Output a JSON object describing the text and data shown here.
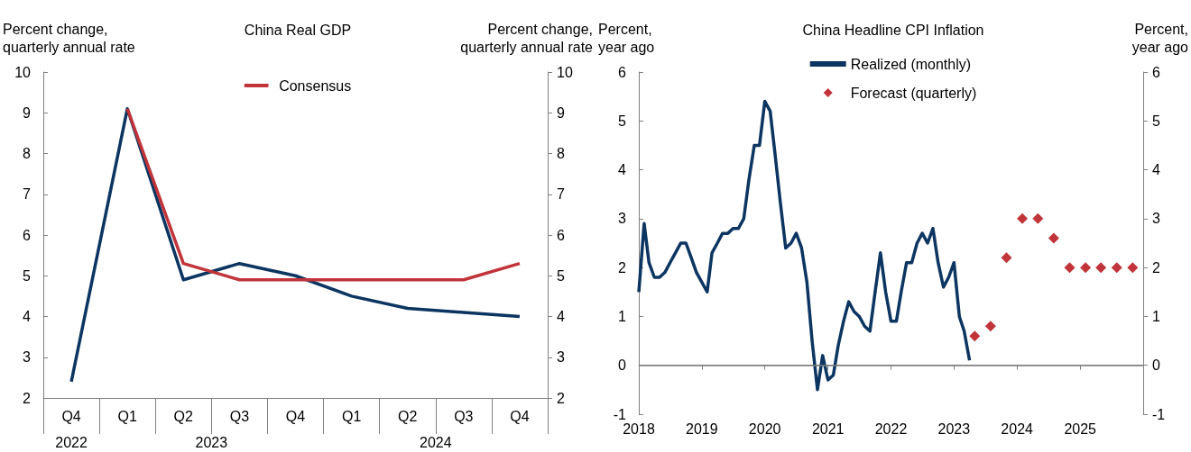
{
  "chart_data": [
    {
      "type": "line",
      "title": "China Real GDP",
      "ylabel": "Percent change, quarterly annual rate",
      "y2label": "Percent change, quarterly annual rate",
      "categories": [
        "Q4",
        "Q1",
        "Q2",
        "Q3",
        "Q4",
        "Q1",
        "Q2",
        "Q3",
        "Q4"
      ],
      "series": [
        {
          "color": "#0c3561",
          "values": [
            2.4,
            9.1,
            4.9,
            5.3,
            5.0,
            4.5,
            4.2,
            4.1,
            4.0
          ]
        },
        {
          "name": "Consensus",
          "color": "#c1343a",
          "values": [
            null,
            9.1,
            5.3,
            4.9,
            4.9,
            4.9,
            4.9,
            4.9,
            5.3
          ]
        }
      ],
      "ylim": [
        2,
        10
      ],
      "yticks": [
        2,
        3,
        4,
        5,
        6,
        7,
        8,
        9,
        10
      ],
      "y2lim": [
        2,
        10
      ],
      "y2ticks": [
        2,
        3,
        4,
        5,
        6,
        7,
        8,
        9,
        10
      ],
      "annotations": [
        "2022",
        "2023",
        "2024"
      ],
      "legend": "top",
      "grid": false,
      "marker": "none",
      "line_style": "solid"
    },
    {
      "type": "line",
      "title": "China Headline CPI Inflation",
      "ylabel": "Percent, year ago",
      "y2label": "Percent, year ago",
      "series": [
        {
          "name": "Realized (monthly)",
          "color": "#0c3561",
          "marker": "none",
          "x": [
            "2018-01",
            "2018-02",
            "2018-03",
            "2018-04",
            "2018-05",
            "2018-06",
            "2018-07",
            "2018-08",
            "2018-09",
            "2018-10",
            "2018-11",
            "2018-12",
            "2019-01",
            "2019-02",
            "2019-03",
            "2019-04",
            "2019-05",
            "2019-06",
            "2019-07",
            "2019-08",
            "2019-09",
            "2019-10",
            "2019-11",
            "2019-12",
            "2020-01",
            "2020-02",
            "2020-03",
            "2020-04",
            "2020-05",
            "2020-06",
            "2020-07",
            "2020-08",
            "2020-09",
            "2020-10",
            "2020-11",
            "2020-12",
            "2021-01",
            "2021-02",
            "2021-03",
            "2021-04",
            "2021-05",
            "2021-06",
            "2021-07",
            "2021-08",
            "2021-09",
            "2021-10",
            "2021-11",
            "2021-12",
            "2022-01",
            "2022-02",
            "2022-03",
            "2022-04",
            "2022-05",
            "2022-06",
            "2022-07",
            "2022-08",
            "2022-09",
            "2022-10",
            "2022-11",
            "2022-12",
            "2023-01",
            "2023-02",
            "2023-03",
            "2023-04"
          ],
          "values": [
            1.5,
            2.9,
            2.1,
            1.8,
            1.8,
            1.9,
            2.1,
            2.3,
            2.5,
            2.5,
            2.2,
            1.9,
            1.7,
            1.5,
            2.3,
            2.5,
            2.7,
            2.7,
            2.8,
            2.8,
            3.0,
            3.8,
            4.5,
            4.5,
            5.4,
            5.2,
            4.3,
            3.3,
            2.4,
            2.5,
            2.7,
            2.4,
            1.7,
            0.5,
            -0.5,
            0.2,
            -0.3,
            -0.2,
            0.4,
            0.9,
            1.3,
            1.1,
            1.0,
            0.8,
            0.7,
            1.5,
            2.3,
            1.5,
            0.9,
            0.9,
            1.5,
            2.1,
            2.1,
            2.5,
            2.7,
            2.5,
            2.8,
            2.1,
            1.6,
            1.8,
            2.1,
            1.0,
            0.7,
            0.1
          ]
        },
        {
          "name": "Forecast (quarterly)",
          "type": "scatter",
          "color": "#c1343a",
          "marker": "diamond",
          "x": [
            "2023-05",
            "2023-08",
            "2023-11",
            "2024-02",
            "2024-05",
            "2024-08",
            "2024-11",
            "2025-02",
            "2025-05",
            "2025-08",
            "2025-11"
          ],
          "values": [
            0.6,
            0.8,
            2.2,
            3.0,
            3.0,
            2.6,
            2.0,
            2.0,
            2.0,
            2.0,
            2.0
          ]
        }
      ],
      "xlim": [
        "2018-01",
        "2026-01"
      ],
      "xticks": [
        "2018",
        "2019",
        "2020",
        "2021",
        "2022",
        "2023",
        "2024",
        "2025"
      ],
      "ylim": [
        -1,
        6
      ],
      "yticks": [
        -1,
        0,
        1,
        2,
        3,
        4,
        5,
        6
      ],
      "y2lim": [
        -1,
        6
      ],
      "y2ticks": [
        -1,
        0,
        1,
        2,
        3,
        4,
        5,
        6
      ],
      "ref_lines": [
        {
          "axis": "y",
          "value": 0,
          "color": "#808080"
        }
      ],
      "legend": "top",
      "grid": false,
      "line_style": "solid"
    }
  ]
}
